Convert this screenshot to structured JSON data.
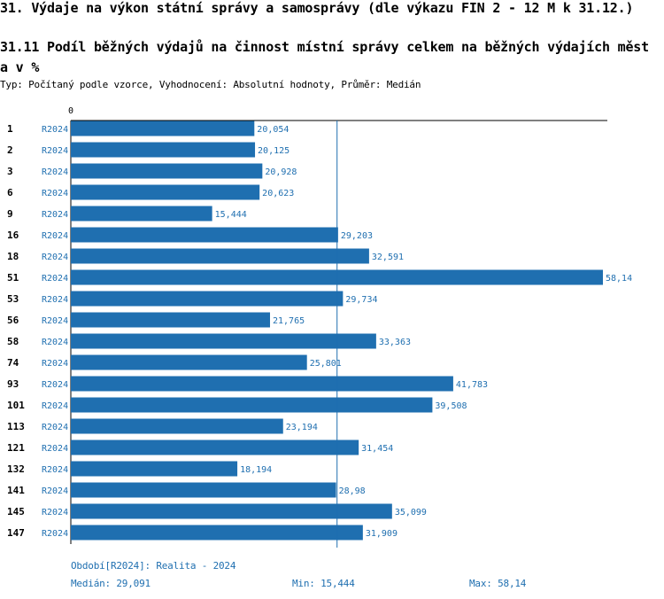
{
  "header": {
    "title": "31. Výdaje na výkon státní správy a samosprávy (dle výkazu FIN 2 - 12 M k 31.12.)",
    "subtitle": "31.11 Podíl běžných výdajů na činnost místní správy celkem na běžných výdajích města v %",
    "type_line": "Typ: Počítaný podle vzorce, Vyhodnocení: Absolutní hodnoty, Průměr: Medián"
  },
  "chart_data": {
    "type": "bar",
    "orientation": "horizontal",
    "axis_zero_label": "0",
    "categories": [
      "1",
      "2",
      "3",
      "6",
      "9",
      "16",
      "18",
      "51",
      "53",
      "56",
      "58",
      "74",
      "93",
      "101",
      "113",
      "121",
      "132",
      "141",
      "145",
      "147"
    ],
    "series_label": "R2024",
    "values": [
      20.054,
      20.125,
      20.928,
      20.623,
      15.444,
      29.203,
      32.591,
      58.14,
      29.734,
      21.765,
      33.363,
      25.801,
      41.783,
      39.508,
      23.194,
      31.454,
      18.194,
      28.98,
      35.099,
      31.909
    ],
    "value_labels": [
      "20,054",
      "20,125",
      "20,928",
      "20,623",
      "15,444",
      "29,203",
      "32,591",
      "58,14",
      "29,734",
      "21,765",
      "33,363",
      "25,801",
      "41,783",
      "39,508",
      "23,194",
      "31,454",
      "18,194",
      "28,98",
      "35,099",
      "31,909"
    ],
    "median": 29.091,
    "xlim": [
      0,
      58.14
    ],
    "grid": false,
    "colors": {
      "bar": "#1f6fb0",
      "label": "#1f6fb0",
      "axis": "#000000"
    }
  },
  "footer": {
    "period": "Období[R2024]: Realita - 2024",
    "median": "Medián: 29,091",
    "min": "Min: 15,444",
    "max": "Max: 58,14"
  }
}
